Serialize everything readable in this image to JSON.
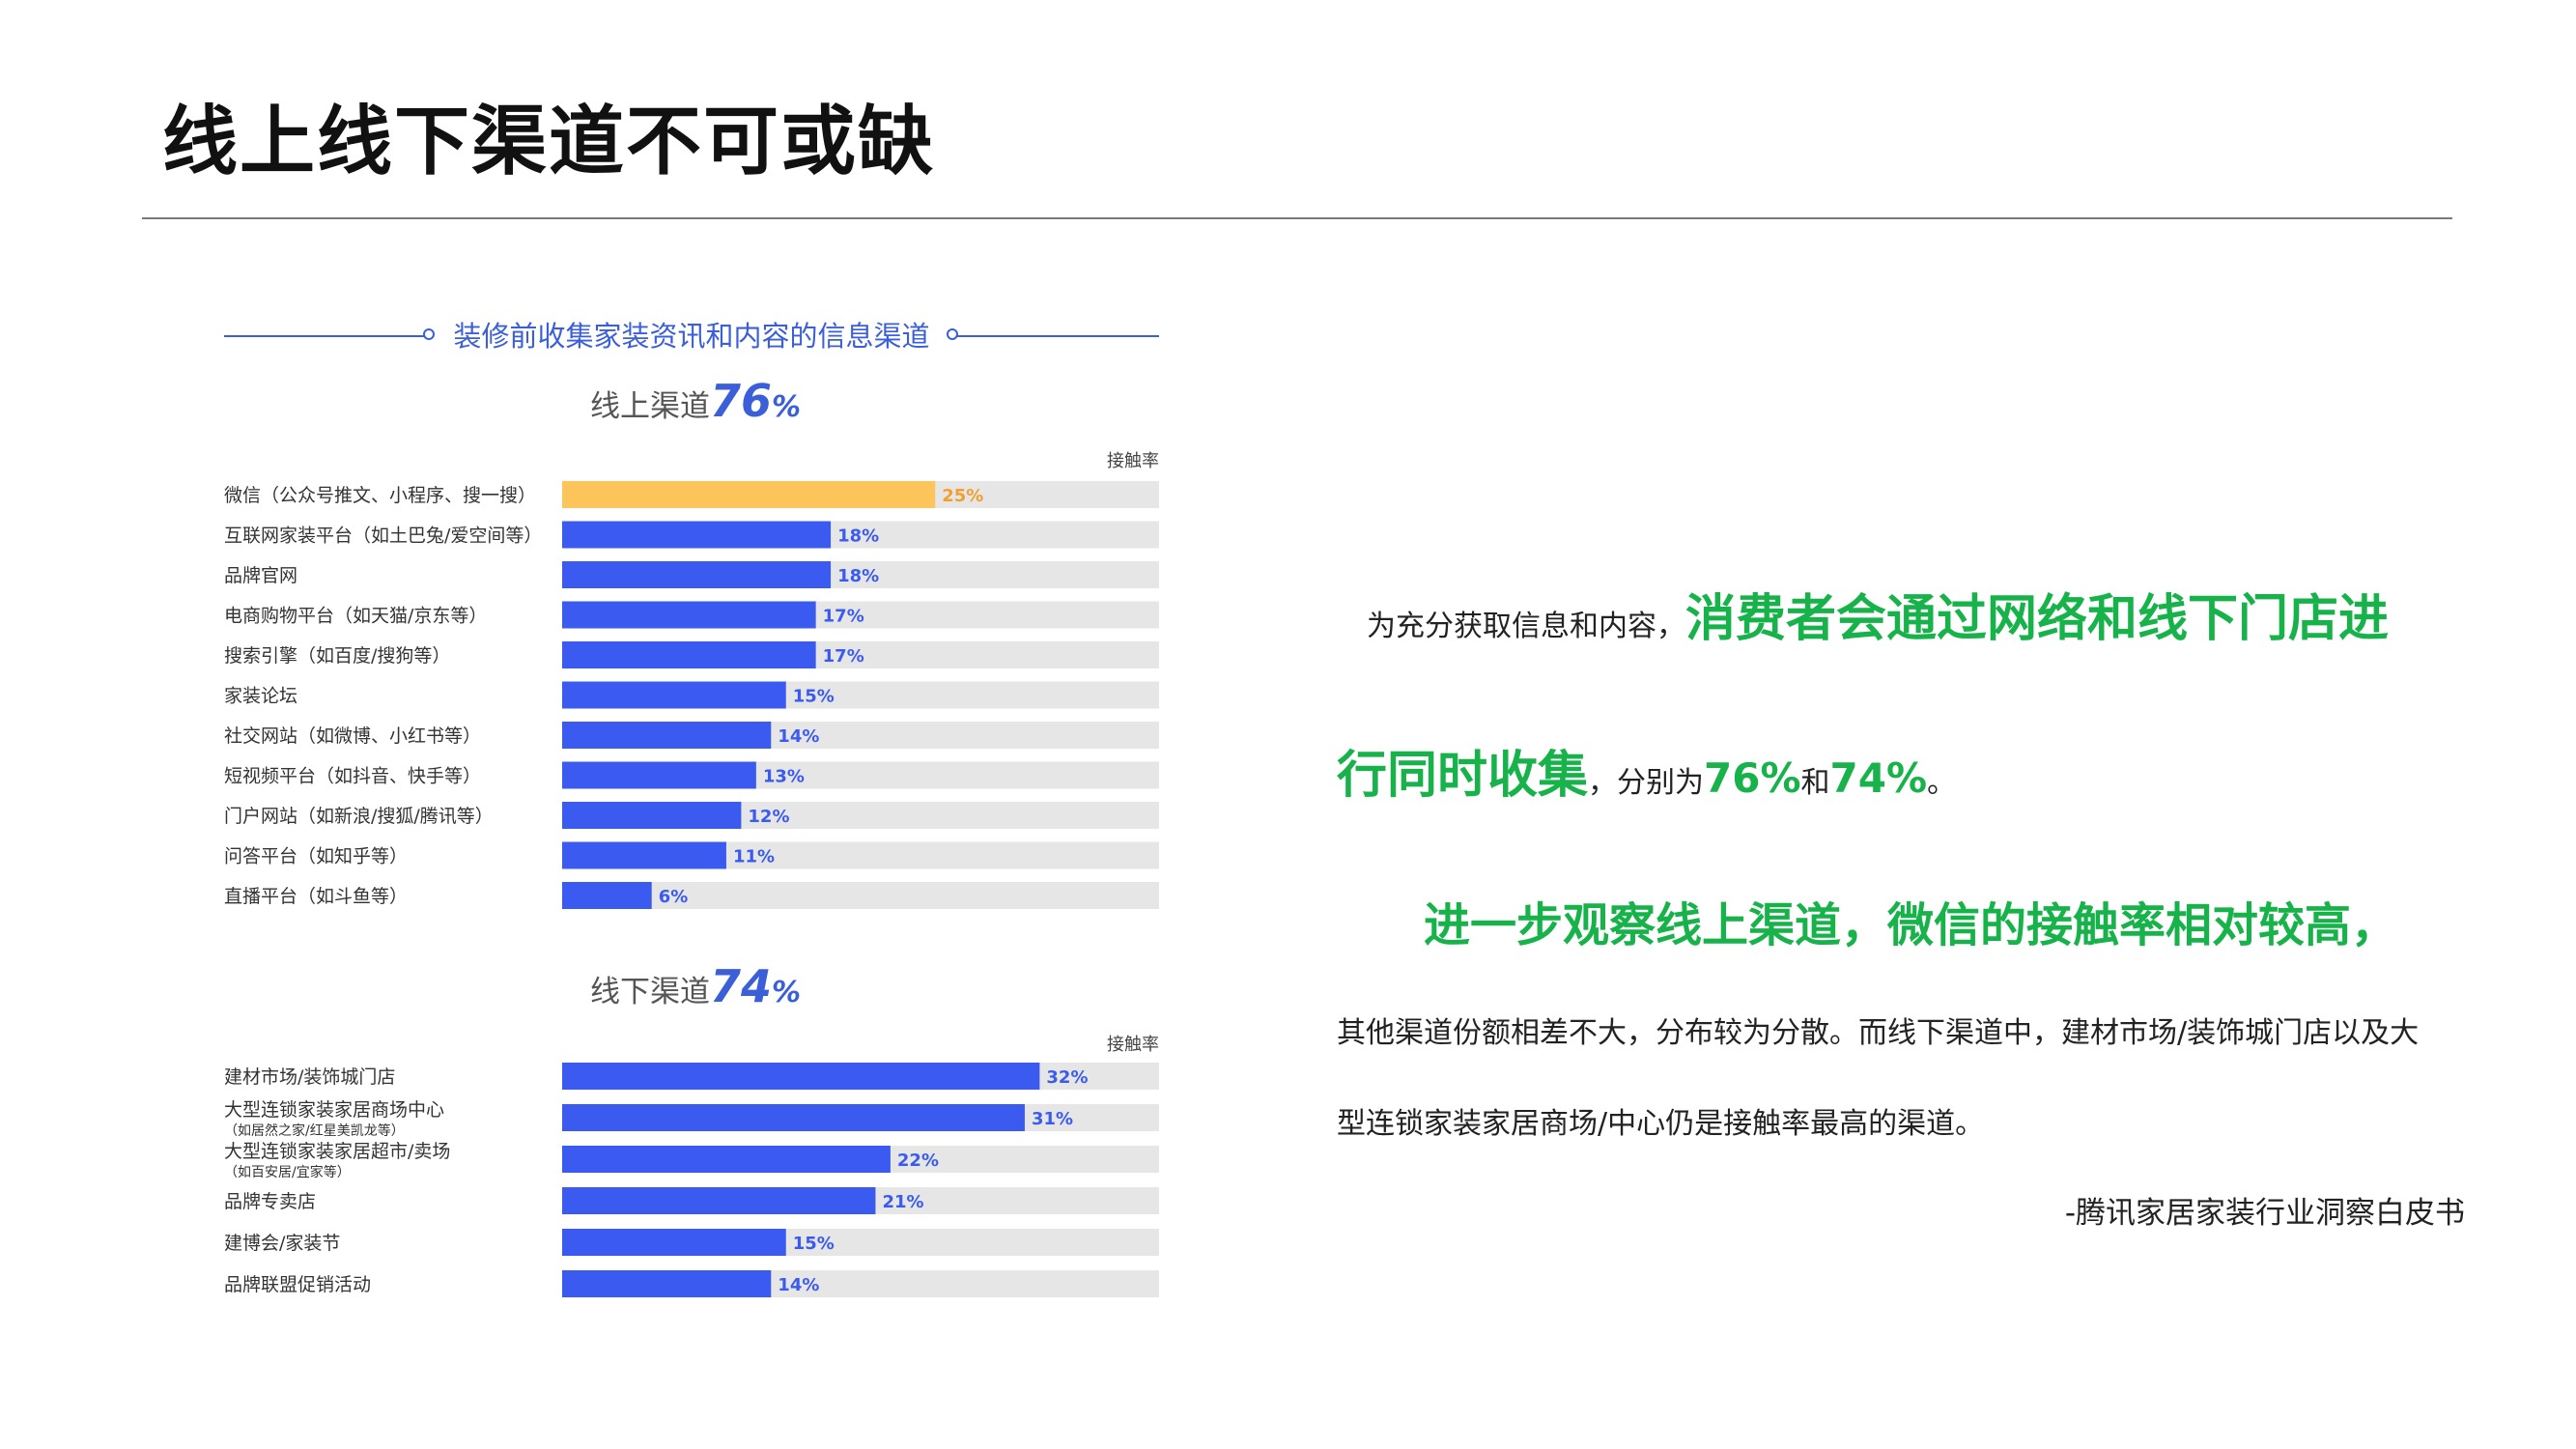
{
  "page": {
    "title": "线上线下渠道不可或缺"
  },
  "chart_data": {
    "type": "bar",
    "orientation": "horizontal",
    "title": "装修前收集家装资讯和内容的信息渠道",
    "xlim": [
      0,
      40
    ],
    "colors": {
      "highlight": "#fbc55b",
      "primary": "#3b5bf0",
      "track": "#e6e6e6",
      "highlight_label": "#f0a030",
      "primary_label": "#3b5bf0"
    },
    "groups": [
      {
        "label": "线上渠道",
        "total_value": "76",
        "total_unit": "%",
        "column_header": "接触率",
        "bars": [
          {
            "label": "微信（公众号推文、小程序、搜一搜）",
            "value": 25,
            "value_label": "25%",
            "highlight": true
          },
          {
            "label": "互联网家装平台（如土巴兔/爱空间等）",
            "value": 18,
            "value_label": "18%"
          },
          {
            "label": "品牌官网",
            "value": 18,
            "value_label": "18%"
          },
          {
            "label": "电商购物平台（如天猫/京东等）",
            "value": 17,
            "value_label": "17%"
          },
          {
            "label": "搜索引擎（如百度/搜狗等）",
            "value": 17,
            "value_label": "17%"
          },
          {
            "label": "家装论坛",
            "value": 15,
            "value_label": "15%"
          },
          {
            "label": "社交网站（如微博、小红书等）",
            "value": 14,
            "value_label": "14%"
          },
          {
            "label": "短视频平台（如抖音、快手等）",
            "value": 13,
            "value_label": "13%"
          },
          {
            "label": "门户网站（如新浪/搜狐/腾讯等）",
            "value": 12,
            "value_label": "12%"
          },
          {
            "label": "问答平台（如知乎等）",
            "value": 11,
            "value_label": "11%"
          },
          {
            "label": "直播平台（如斗鱼等）",
            "value": 6,
            "value_label": "6%"
          }
        ]
      },
      {
        "label": "线下渠道",
        "total_value": "74",
        "total_unit": "%",
        "column_header": "接触率",
        "bars": [
          {
            "label": "建材市场/装饰城门店",
            "value": 32,
            "value_label": "32%"
          },
          {
            "label": "大型连锁家装家居商场中心",
            "sublabel": "（如居然之家/红星美凯龙等）",
            "value": 31,
            "value_label": "31%"
          },
          {
            "label": "大型连锁家装家居超市/卖场",
            "sublabel": "（如百安居/宜家等）",
            "value": 22,
            "value_label": "22%"
          },
          {
            "label": "品牌专卖店",
            "value": 21,
            "value_label": "21%"
          },
          {
            "label": "建博会/家装节",
            "value": 15,
            "value_label": "15%"
          },
          {
            "label": "品牌联盟促销活动",
            "value": 14,
            "value_label": "14%"
          }
        ]
      }
    ]
  },
  "text": {
    "p1_intro": "为充分获取信息和内容，",
    "p1_highlight": "消费者会通过网络和线下门店进",
    "p2_highlight": "行同时收集",
    "p2_text_a": "，分别为",
    "p2_num_1": "76%",
    "p2_text_b": "和",
    "p2_num_2": "74%",
    "p2_text_c": "。",
    "p3_highlight": "进一步观察线上渠道，微信的接触率相对较高，",
    "p4": "其他渠道份额相差不大，分布较为分散。而线下渠道中，建材市场/装饰城门店以及大",
    "p5": "型连锁家装家居商场/中心仍是接触率最高的渠道。",
    "source": "-腾讯家居家装行业洞察白皮书"
  }
}
